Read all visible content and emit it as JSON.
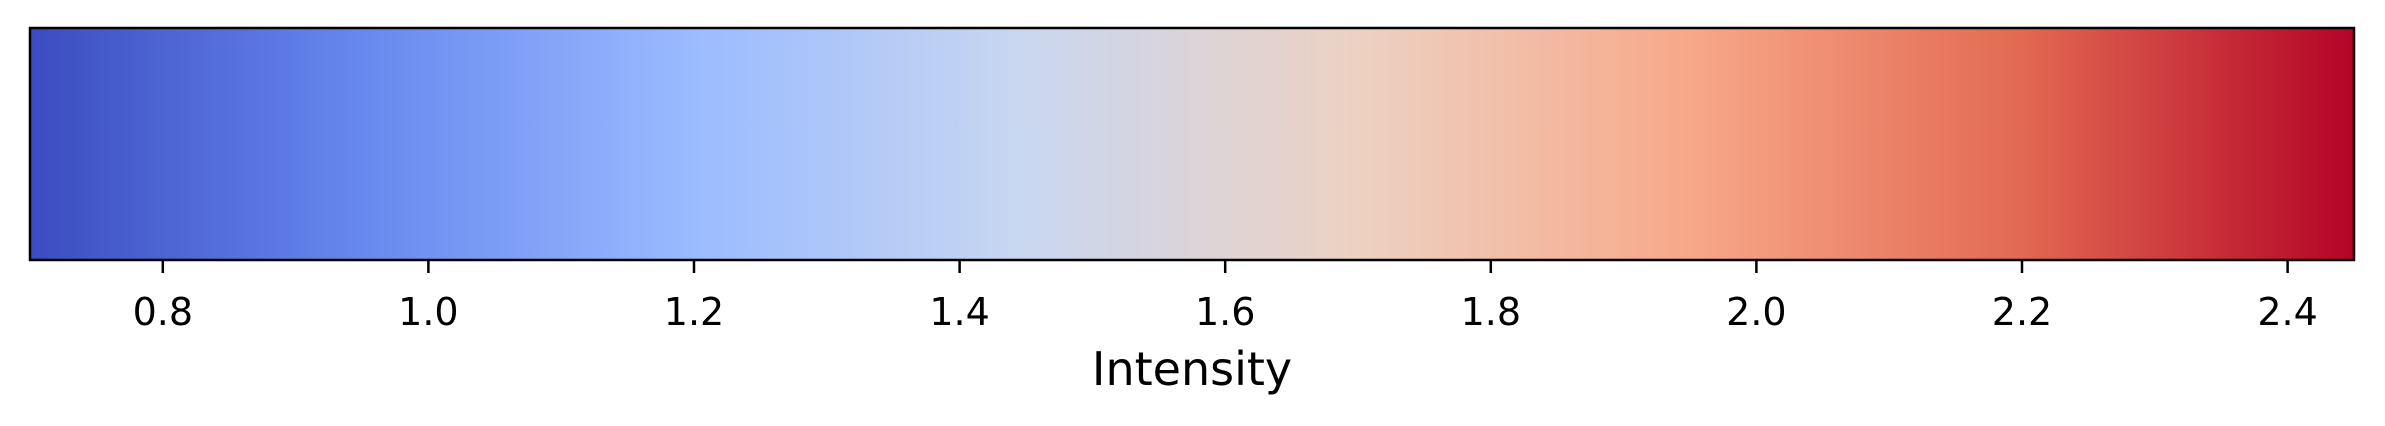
{
  "chart_data": {
    "type": "colorbar",
    "orientation": "horizontal",
    "colormap": "coolwarm",
    "xlabel": "Intensity",
    "xlim": [
      0.7,
      2.45
    ],
    "ticks": [
      0.8,
      1.0,
      1.2,
      1.4,
      1.6,
      1.8,
      2.0,
      2.2,
      2.4
    ],
    "tick_labels": [
      "0.8",
      "1.0",
      "1.2",
      "1.4",
      "1.6",
      "1.8",
      "2.0",
      "2.2",
      "2.4"
    ],
    "color_stops": [
      "#3b4cc0",
      "#6788ee",
      "#9abbff",
      "#c9d7f0",
      "#edd1c2",
      "#f7a889",
      "#e26952",
      "#b40426"
    ]
  }
}
